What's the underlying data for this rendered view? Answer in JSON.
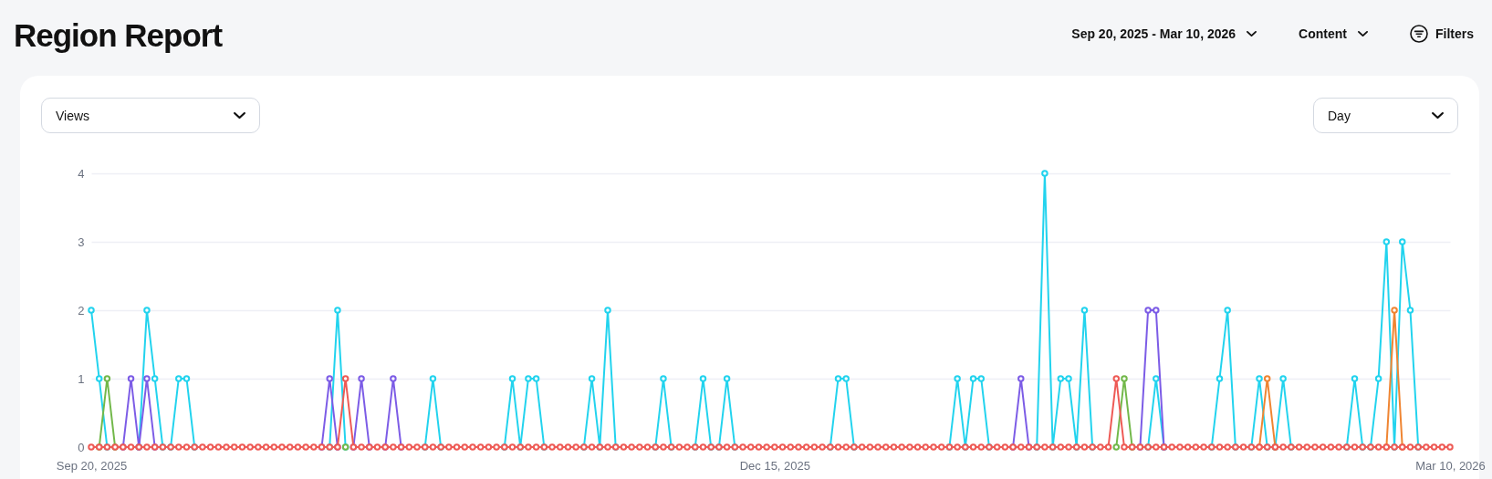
{
  "chart_data": {
    "type": "line",
    "title": "Region Report",
    "annotations": [
      "Sep 20, 2025 - Mar 10, 2026",
      "Content",
      "Filters",
      "Views",
      "Day"
    ],
    "x": [
      "2025-09-20",
      "2025-09-21",
      "2025-09-22",
      "2025-09-23",
      "2025-09-24",
      "2025-09-25",
      "2025-09-26",
      "2025-09-27",
      "2025-09-28",
      "2025-09-29",
      "2025-09-30",
      "2025-10-01",
      "2025-10-02",
      "2025-10-03",
      "2025-10-04",
      "2025-10-05",
      "2025-10-06",
      "2025-10-07",
      "2025-10-08",
      "2025-10-09",
      "2025-10-10",
      "2025-10-11",
      "2025-10-12",
      "2025-10-13",
      "2025-10-14",
      "2025-10-15",
      "2025-10-16",
      "2025-10-17",
      "2025-10-18",
      "2025-10-19",
      "2025-10-20",
      "2025-10-21",
      "2025-10-22",
      "2025-10-23",
      "2025-10-24",
      "2025-10-25",
      "2025-10-26",
      "2025-10-27",
      "2025-10-28",
      "2025-10-29",
      "2025-10-30",
      "2025-10-31",
      "2025-11-01",
      "2025-11-02",
      "2025-11-03",
      "2025-11-04",
      "2025-11-05",
      "2025-11-06",
      "2025-11-07",
      "2025-11-08",
      "2025-11-09",
      "2025-11-10",
      "2025-11-11",
      "2025-11-12",
      "2025-11-13",
      "2025-11-14",
      "2025-11-15",
      "2025-11-16",
      "2025-11-17",
      "2025-11-18",
      "2025-11-19",
      "2025-11-20",
      "2025-11-21",
      "2025-11-22",
      "2025-11-23",
      "2025-11-24",
      "2025-11-25",
      "2025-11-26",
      "2025-11-27",
      "2025-11-28",
      "2025-11-29",
      "2025-11-30",
      "2025-12-01",
      "2025-12-02",
      "2025-12-03",
      "2025-12-04",
      "2025-12-05",
      "2025-12-06",
      "2025-12-07",
      "2025-12-08",
      "2025-12-09",
      "2025-12-10",
      "2025-12-11",
      "2025-12-12",
      "2025-12-13",
      "2025-12-14",
      "2025-12-15",
      "2025-12-16",
      "2025-12-17",
      "2025-12-18",
      "2025-12-19",
      "2025-12-20",
      "2025-12-21",
      "2025-12-22",
      "2025-12-23",
      "2025-12-24",
      "2025-12-25",
      "2025-12-26",
      "2025-12-27",
      "2025-12-28",
      "2025-12-29",
      "2025-12-30",
      "2025-12-31",
      "2026-01-01",
      "2026-01-02",
      "2026-01-03",
      "2026-01-04",
      "2026-01-05",
      "2026-01-06",
      "2026-01-07",
      "2026-01-08",
      "2026-01-09",
      "2026-01-10",
      "2026-01-11",
      "2026-01-12",
      "2026-01-13",
      "2026-01-14",
      "2026-01-15",
      "2026-01-16",
      "2026-01-17",
      "2026-01-18",
      "2026-01-19",
      "2026-01-20",
      "2026-01-21",
      "2026-01-22",
      "2026-01-23",
      "2026-01-24",
      "2026-01-25",
      "2026-01-26",
      "2026-01-27",
      "2026-01-28",
      "2026-01-29",
      "2026-01-30",
      "2026-01-31",
      "2026-02-01",
      "2026-02-02",
      "2026-02-03",
      "2026-02-04",
      "2026-02-05",
      "2026-02-06",
      "2026-02-07",
      "2026-02-08",
      "2026-02-09",
      "2026-02-10",
      "2026-02-11",
      "2026-02-12",
      "2026-02-13",
      "2026-02-14",
      "2026-02-15",
      "2026-02-16",
      "2026-02-17",
      "2026-02-18",
      "2026-02-19",
      "2026-02-20",
      "2026-02-21",
      "2026-02-22",
      "2026-02-23",
      "2026-02-24",
      "2026-02-25",
      "2026-02-26",
      "2026-02-27",
      "2026-02-28",
      "2026-03-01",
      "2026-03-02",
      "2026-03-03",
      "2026-03-04",
      "2026-03-05",
      "2026-03-06",
      "2026-03-07",
      "2026-03-08",
      "2026-03-09",
      "2026-03-10"
    ],
    "series": [
      {
        "color": "#22d3ee",
        "values": [
          2,
          1,
          0,
          null,
          null,
          null,
          0,
          2,
          1,
          0,
          0,
          1,
          1,
          0,
          null,
          null,
          null,
          null,
          null,
          null,
          null,
          null,
          null,
          null,
          null,
          null,
          null,
          null,
          null,
          null,
          0,
          2,
          0,
          null,
          null,
          null,
          null,
          null,
          null,
          null,
          null,
          null,
          0,
          1,
          0,
          null,
          null,
          null,
          null,
          null,
          null,
          null,
          0,
          1,
          0,
          1,
          1,
          0,
          null,
          null,
          null,
          null,
          0,
          1,
          0,
          2,
          0,
          null,
          null,
          null,
          null,
          0,
          1,
          0,
          null,
          null,
          0,
          1,
          0,
          0,
          1,
          0,
          null,
          null,
          null,
          null,
          null,
          null,
          null,
          null,
          null,
          null,
          null,
          0,
          1,
          1,
          0,
          null,
          null,
          null,
          null,
          null,
          null,
          null,
          null,
          null,
          null,
          null,
          0,
          1,
          0,
          1,
          1,
          0,
          null,
          null,
          null,
          null,
          null,
          0,
          4,
          0,
          1,
          1,
          0,
          2,
          0,
          null,
          null,
          null,
          null,
          null,
          null,
          0,
          1,
          0,
          null,
          null,
          null,
          null,
          null,
          0,
          1,
          2,
          0,
          null,
          0,
          1,
          0,
          0,
          1,
          0,
          null,
          null,
          null,
          null,
          null,
          null,
          0,
          1,
          0,
          0,
          1,
          3,
          0,
          3,
          2,
          0,
          null,
          null,
          null,
          null
        ]
      },
      {
        "color": "#7c5ce6",
        "values": [
          null,
          null,
          null,
          null,
          0,
          1,
          0,
          1,
          0,
          null,
          null,
          null,
          null,
          null,
          null,
          null,
          null,
          null,
          null,
          null,
          null,
          null,
          null,
          null,
          null,
          null,
          null,
          null,
          null,
          0,
          1,
          0,
          null,
          0,
          1,
          0,
          null,
          0,
          1,
          0,
          null,
          null,
          null,
          null,
          null,
          null,
          null,
          null,
          null,
          null,
          null,
          null,
          null,
          null,
          null,
          null,
          null,
          null,
          null,
          null,
          null,
          null,
          null,
          null,
          null,
          null,
          null,
          null,
          null,
          null,
          null,
          null,
          null,
          null,
          null,
          null,
          null,
          null,
          null,
          null,
          null,
          null,
          null,
          null,
          null,
          null,
          null,
          null,
          null,
          null,
          null,
          null,
          null,
          null,
          null,
          null,
          null,
          null,
          null,
          null,
          null,
          null,
          null,
          null,
          null,
          null,
          null,
          null,
          null,
          null,
          null,
          null,
          null,
          null,
          null,
          null,
          0,
          1,
          0,
          null,
          null,
          null,
          null,
          null,
          null,
          null,
          null,
          null,
          null,
          null,
          null,
          null,
          0,
          2,
          2,
          0,
          null,
          null,
          null,
          null,
          null,
          null,
          null,
          null,
          null,
          null,
          null,
          null,
          null,
          null,
          null,
          null,
          null,
          null,
          null,
          null,
          null,
          null,
          null,
          null,
          null,
          null,
          null,
          null,
          null,
          null,
          null,
          null,
          null,
          null,
          null,
          null
        ]
      },
      {
        "color": "#ef8532",
        "values": [
          null,
          null,
          null,
          null,
          null,
          null,
          null,
          null,
          null,
          null,
          null,
          null,
          null,
          null,
          null,
          null,
          null,
          null,
          null,
          null,
          null,
          null,
          null,
          null,
          null,
          null,
          null,
          null,
          null,
          null,
          null,
          null,
          null,
          null,
          null,
          null,
          null,
          null,
          null,
          null,
          null,
          null,
          null,
          null,
          null,
          null,
          null,
          null,
          null,
          null,
          null,
          null,
          null,
          null,
          null,
          null,
          null,
          null,
          null,
          null,
          null,
          null,
          null,
          null,
          null,
          null,
          null,
          null,
          null,
          null,
          null,
          null,
          null,
          null,
          null,
          null,
          null,
          null,
          null,
          null,
          null,
          null,
          null,
          null,
          null,
          null,
          null,
          null,
          null,
          null,
          null,
          null,
          null,
          null,
          null,
          null,
          null,
          null,
          null,
          null,
          null,
          null,
          null,
          null,
          null,
          null,
          null,
          null,
          null,
          null,
          null,
          null,
          null,
          null,
          null,
          null,
          null,
          null,
          null,
          null,
          null,
          null,
          null,
          null,
          null,
          null,
          null,
          null,
          null,
          null,
          null,
          null,
          null,
          null,
          null,
          null,
          null,
          null,
          null,
          null,
          null,
          null,
          null,
          null,
          null,
          null,
          null,
          0,
          1,
          0,
          null,
          null,
          null,
          null,
          null,
          null,
          null,
          null,
          null,
          null,
          null,
          null,
          null,
          0,
          2,
          0,
          null,
          null,
          null,
          null,
          null,
          null
        ]
      },
      {
        "color": "#72b84a",
        "values": [
          null,
          0,
          1,
          0,
          null,
          null,
          null,
          null,
          null,
          null,
          null,
          null,
          null,
          null,
          null,
          null,
          null,
          null,
          null,
          null,
          null,
          null,
          null,
          null,
          null,
          null,
          null,
          null,
          null,
          null,
          null,
          null,
          0,
          null,
          null,
          null,
          null,
          null,
          null,
          null,
          null,
          null,
          null,
          null,
          null,
          null,
          null,
          null,
          null,
          null,
          null,
          null,
          null,
          null,
          null,
          null,
          null,
          null,
          null,
          null,
          null,
          null,
          null,
          null,
          null,
          null,
          null,
          null,
          null,
          null,
          null,
          null,
          null,
          null,
          null,
          null,
          null,
          null,
          null,
          null,
          null,
          null,
          null,
          null,
          null,
          null,
          null,
          null,
          null,
          null,
          null,
          null,
          null,
          null,
          null,
          null,
          null,
          null,
          null,
          null,
          null,
          null,
          null,
          null,
          null,
          null,
          null,
          null,
          null,
          null,
          null,
          null,
          null,
          null,
          null,
          null,
          null,
          null,
          null,
          null,
          null,
          null,
          null,
          null,
          null,
          null,
          null,
          null,
          null,
          0,
          1,
          0,
          null,
          null,
          null,
          null,
          null,
          null,
          null,
          null,
          null,
          null,
          null,
          null,
          null,
          null,
          null,
          null,
          null,
          null,
          null,
          null,
          null,
          null,
          null,
          null,
          null,
          null,
          null,
          null,
          null,
          null,
          null,
          null,
          null,
          null,
          null,
          null,
          null,
          null,
          null,
          null
        ]
      },
      {
        "color": "#ee5a55",
        "values": [
          0,
          0,
          0,
          0,
          0,
          0,
          0,
          0,
          0,
          0,
          0,
          0,
          0,
          0,
          0,
          0,
          0,
          0,
          0,
          0,
          0,
          0,
          0,
          0,
          0,
          0,
          0,
          0,
          0,
          0,
          0,
          0,
          1,
          0,
          0,
          0,
          0,
          0,
          0,
          0,
          0,
          0,
          0,
          0,
          0,
          0,
          0,
          0,
          0,
          0,
          0,
          0,
          0,
          0,
          0,
          0,
          0,
          0,
          0,
          0,
          0,
          0,
          0,
          0,
          0,
          0,
          0,
          0,
          0,
          0,
          0,
          0,
          0,
          0,
          0,
          0,
          0,
          0,
          0,
          0,
          0,
          0,
          0,
          0,
          0,
          0,
          0,
          0,
          0,
          0,
          0,
          0,
          0,
          0,
          0,
          0,
          0,
          0,
          0,
          0,
          0,
          0,
          0,
          0,
          0,
          0,
          0,
          0,
          0,
          0,
          0,
          0,
          0,
          0,
          0,
          0,
          0,
          0,
          0,
          0,
          0,
          0,
          0,
          0,
          0,
          0,
          0,
          0,
          0,
          1,
          0,
          0,
          0,
          0,
          0,
          0,
          0,
          0,
          0,
          0,
          0,
          0,
          0,
          0,
          0,
          0,
          0,
          0,
          0,
          0,
          0,
          0,
          0,
          0,
          0,
          0,
          0,
          0,
          0,
          0,
          0,
          0,
          0,
          0,
          0,
          0,
          0,
          0,
          0,
          0,
          0,
          0
        ]
      }
    ],
    "xlim": [
      "2025-09-20",
      "2026-03-10"
    ],
    "xticks": [
      {
        "value": "2025-09-20",
        "label": "Sep 20, 2025"
      },
      {
        "value": "2025-12-15",
        "label": "Dec 15, 2025"
      },
      {
        "value": "2026-03-10",
        "label": "Mar 10, 2026"
      }
    ],
    "ylim": [
      0,
      4
    ],
    "yticks": [
      0,
      1,
      2,
      3,
      4
    ],
    "grid": "y",
    "marker": "circle",
    "line_style": "solid"
  }
}
